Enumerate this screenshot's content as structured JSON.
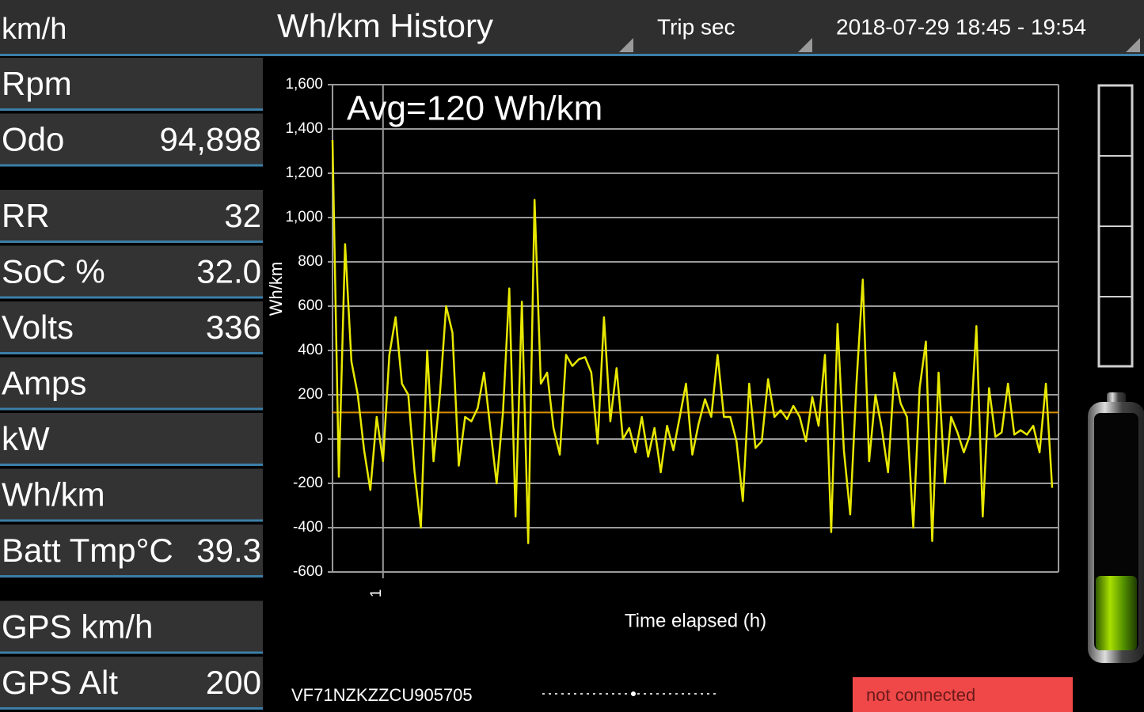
{
  "header": {
    "speed_label": "km/h",
    "title": "Wh/km History",
    "period_selector": "Trip sec",
    "range_selector": "2018-07-29 18:45 - 19:54"
  },
  "sidebar": {
    "groups": [
      [
        {
          "label": "Rpm"
        },
        {
          "label": "Odo",
          "value": "94,898"
        }
      ],
      [
        {
          "label": "RR",
          "value": "32"
        },
        {
          "label": "SoC %",
          "value": "32.0"
        },
        {
          "label": "Volts",
          "value": "336"
        },
        {
          "label": "Amps"
        },
        {
          "label": "kW"
        },
        {
          "label": "Wh/km"
        },
        {
          "label": "Batt Tmp°C",
          "value": "39.3"
        }
      ],
      [
        {
          "label": "GPS km/h"
        },
        {
          "label": "GPS Alt",
          "value": "200"
        }
      ]
    ]
  },
  "chart_data": {
    "type": "line",
    "annotation": "Avg=120 Wh/km",
    "y_label": "Wh/km",
    "x_label": "Time elapsed (h)",
    "color": "#e8e800",
    "average": 120,
    "average_color": "#d98c00",
    "grid": true,
    "xlim": [
      0.92,
      2.07
    ],
    "xticks": [
      1
    ],
    "ylim": [
      -600,
      1600
    ],
    "yticks": [
      {
        "value": 1600,
        "label": "1,600"
      },
      {
        "value": 1400,
        "label": "1,400"
      },
      {
        "value": 1200,
        "label": "1,200"
      },
      {
        "value": 1000,
        "label": "1,000"
      },
      800,
      600,
      400,
      200,
      0,
      -200,
      -400,
      -600
    ],
    "x": [
      0.92,
      0.93,
      0.94,
      0.95,
      0.96,
      0.97,
      0.98,
      0.99,
      1.0,
      1.01,
      1.02,
      1.03,
      1.04,
      1.05,
      1.06,
      1.07,
      1.08,
      1.09,
      1.1,
      1.11,
      1.12,
      1.13,
      1.14,
      1.15,
      1.16,
      1.17,
      1.18,
      1.19,
      1.2,
      1.21,
      1.22,
      1.23,
      1.24,
      1.25,
      1.26,
      1.27,
      1.28,
      1.29,
      1.3,
      1.31,
      1.32,
      1.33,
      1.34,
      1.35,
      1.36,
      1.37,
      1.38,
      1.39,
      1.4,
      1.41,
      1.42,
      1.43,
      1.44,
      1.45,
      1.46,
      1.47,
      1.48,
      1.49,
      1.5,
      1.51,
      1.52,
      1.53,
      1.54,
      1.55,
      1.56,
      1.57,
      1.58,
      1.59,
      1.6,
      1.61,
      1.62,
      1.63,
      1.64,
      1.65,
      1.66,
      1.67,
      1.68,
      1.69,
      1.7,
      1.71,
      1.72,
      1.73,
      1.74,
      1.75,
      1.76,
      1.77,
      1.78,
      1.79,
      1.8,
      1.81,
      1.82,
      1.83,
      1.84,
      1.85,
      1.86,
      1.87,
      1.88,
      1.89,
      1.9,
      1.91,
      1.92,
      1.93,
      1.94,
      1.95,
      1.96,
      1.97,
      1.98,
      1.99,
      2.0,
      2.01,
      2.02,
      2.03,
      2.04,
      2.05,
      2.06
    ],
    "values": [
      1350,
      -170,
      880,
      350,
      200,
      -50,
      -230,
      100,
      -100,
      380,
      550,
      250,
      200,
      -150,
      -400,
      400,
      -100,
      200,
      600,
      480,
      -120,
      100,
      80,
      140,
      300,
      50,
      -200,
      120,
      680,
      -350,
      620,
      -470,
      1080,
      250,
      300,
      50,
      -70,
      380,
      330,
      360,
      370,
      300,
      -20,
      550,
      80,
      320,
      0,
      50,
      -60,
      100,
      -80,
      50,
      -150,
      60,
      -50,
      100,
      250,
      -70,
      70,
      180,
      100,
      380,
      100,
      100,
      -10,
      -280,
      250,
      -40,
      -10,
      270,
      100,
      130,
      90,
      150,
      100,
      -10,
      190,
      60,
      380,
      -420,
      520,
      -50,
      -340,
      250,
      720,
      -100,
      200,
      50,
      -150,
      300,
      160,
      100,
      -400,
      230,
      440,
      -460,
      300,
      -200,
      100,
      30,
      -60,
      20,
      510,
      -350,
      230,
      10,
      30,
      250,
      20,
      40,
      20,
      60,
      -60,
      250,
      -220
    ]
  },
  "footer": {
    "vin": "VF71NZKZZCU905705",
    "status": "not connected"
  }
}
